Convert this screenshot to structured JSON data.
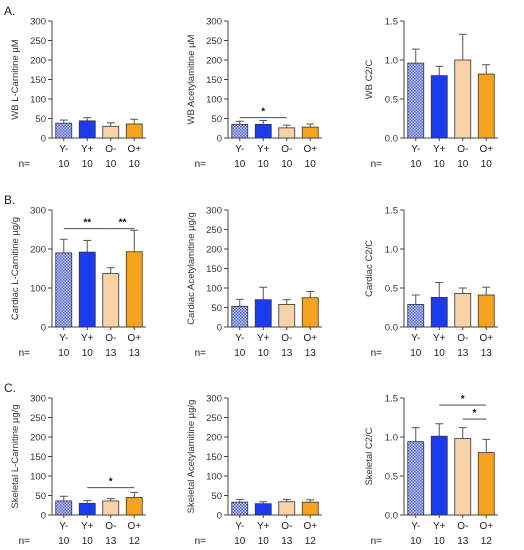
{
  "panel_labels": [
    "A.",
    "B.",
    "C."
  ],
  "n_prefix": "n=",
  "colors": {
    "Y-": "#7f8fd6",
    "Y+": "#1c3bf0",
    "O-": "#f7d2a6",
    "O+": "#f7a21b",
    "axis": "#444444",
    "error": "#555555"
  },
  "chart_data": [
    {
      "type": "bar",
      "row": 0,
      "col": 0,
      "ylabel": "WB L-Carnitine µM",
      "yticks": [
        0,
        50,
        100,
        150,
        200,
        250,
        300
      ],
      "ylim": [
        0,
        300
      ],
      "categories": [
        "Y-",
        "Y+",
        "O-",
        "O+"
      ],
      "values": [
        38,
        44,
        30,
        36
      ],
      "errors": [
        8,
        8,
        9,
        12
      ],
      "n": [
        "10",
        "10",
        "10",
        "10"
      ],
      "sig": []
    },
    {
      "type": "bar",
      "row": 0,
      "col": 1,
      "ylabel": "WB Acetylamitine µM",
      "yticks": [
        0,
        50,
        100,
        150,
        200,
        250,
        300
      ],
      "ylim": [
        0,
        300
      ],
      "categories": [
        "Y-",
        "Y+",
        "O-",
        "O+"
      ],
      "values": [
        35,
        35,
        26,
        28
      ],
      "errors": [
        8,
        10,
        7,
        8
      ],
      "n": [
        "10",
        "10",
        "10",
        "10"
      ],
      "sig": [
        {
          "from": 0,
          "to": 2,
          "level": 52,
          "label": "*"
        }
      ]
    },
    {
      "type": "bar",
      "row": 0,
      "col": 2,
      "ylabel": "WB C2/C",
      "yticks": [
        0.0,
        0.5,
        1.0,
        1.5
      ],
      "ylim": [
        0,
        1.5
      ],
      "decimals": 1,
      "categories": [
        "Y-",
        "Y+",
        "O-",
        "O+"
      ],
      "values": [
        0.96,
        0.8,
        1.0,
        0.82
      ],
      "errors": [
        0.18,
        0.12,
        0.33,
        0.12
      ],
      "n": [
        "10",
        "10",
        "10",
        "10"
      ],
      "sig": []
    },
    {
      "type": "bar",
      "row": 1,
      "col": 0,
      "ylabel": "Cardiac L-Carnitine µg/g",
      "yticks": [
        0,
        100,
        200,
        300
      ],
      "ylim": [
        0,
        300
      ],
      "categories": [
        "Y-",
        "Y+",
        "O-",
        "O+"
      ],
      "values": [
        190,
        192,
        137,
        193
      ],
      "errors": [
        35,
        30,
        15,
        55
      ],
      "n": [
        "10",
        "10",
        "13",
        "13"
      ],
      "sig": [
        {
          "from": 0,
          "to": 2,
          "level": 252,
          "label": "**"
        },
        {
          "from": 2,
          "to": 3,
          "level": 252,
          "label": "**"
        }
      ]
    },
    {
      "type": "bar",
      "row": 1,
      "col": 1,
      "ylabel": "Cardiac Acetylamitine µg/g",
      "yticks": [
        0,
        50,
        100,
        150,
        200,
        250,
        300
      ],
      "ylim": [
        0,
        300
      ],
      "categories": [
        "Y-",
        "Y+",
        "O-",
        "O+"
      ],
      "values": [
        53,
        70,
        58,
        75
      ],
      "errors": [
        18,
        32,
        12,
        16
      ],
      "n": [
        "10",
        "10",
        "13",
        "13"
      ],
      "sig": []
    },
    {
      "type": "bar",
      "row": 1,
      "col": 2,
      "ylabel": "Cardiac C2/C",
      "yticks": [
        0.0,
        0.5,
        1.0,
        1.5
      ],
      "ylim": [
        0,
        1.5
      ],
      "decimals": 1,
      "categories": [
        "Y-",
        "Y+",
        "O-",
        "O+"
      ],
      "values": [
        0.29,
        0.38,
        0.43,
        0.41
      ],
      "errors": [
        0.12,
        0.19,
        0.07,
        0.1
      ],
      "n": [
        "10",
        "10",
        "13",
        "13"
      ],
      "sig": []
    },
    {
      "type": "bar",
      "row": 2,
      "col": 0,
      "ylabel": "Skeletal L-Carnitine µg/g",
      "yticks": [
        0,
        50,
        100,
        150,
        200,
        250,
        300
      ],
      "ylim": [
        0,
        300
      ],
      "categories": [
        "Y-",
        "Y+",
        "O-",
        "O+"
      ],
      "values": [
        36,
        30,
        36,
        45
      ],
      "errors": [
        12,
        7,
        6,
        13
      ],
      "n": [
        "10",
        "10",
        "13",
        "12"
      ],
      "sig": [
        {
          "from": 1,
          "to": 3,
          "level": 70,
          "label": "*"
        }
      ]
    },
    {
      "type": "bar",
      "row": 2,
      "col": 1,
      "ylabel": "Skeletal Acetylamitine µg/g",
      "yticks": [
        0,
        50,
        100,
        150,
        200,
        250,
        300
      ],
      "ylim": [
        0,
        300
      ],
      "categories": [
        "Y-",
        "Y+",
        "O-",
        "O+"
      ],
      "values": [
        33,
        29,
        34,
        33
      ],
      "errors": [
        7,
        5,
        6,
        6
      ],
      "n": [
        "10",
        "10",
        "13",
        "12"
      ],
      "sig": []
    },
    {
      "type": "bar",
      "row": 2,
      "col": 2,
      "ylabel": "Skeletal C2/C",
      "yticks": [
        0.0,
        0.5,
        1.0,
        1.5
      ],
      "ylim": [
        0,
        1.5
      ],
      "decimals": 1,
      "categories": [
        "Y-",
        "Y+",
        "O-",
        "O+"
      ],
      "values": [
        0.94,
        1.01,
        0.98,
        0.8
      ],
      "errors": [
        0.18,
        0.16,
        0.14,
        0.17
      ],
      "n": [
        "10",
        "10",
        "13",
        "12"
      ],
      "sig": [
        {
          "from": 1,
          "to": 3,
          "level": 1.41,
          "label": "*"
        },
        {
          "from": 2,
          "to": 3,
          "level": 1.23,
          "label": "*"
        }
      ]
    }
  ]
}
